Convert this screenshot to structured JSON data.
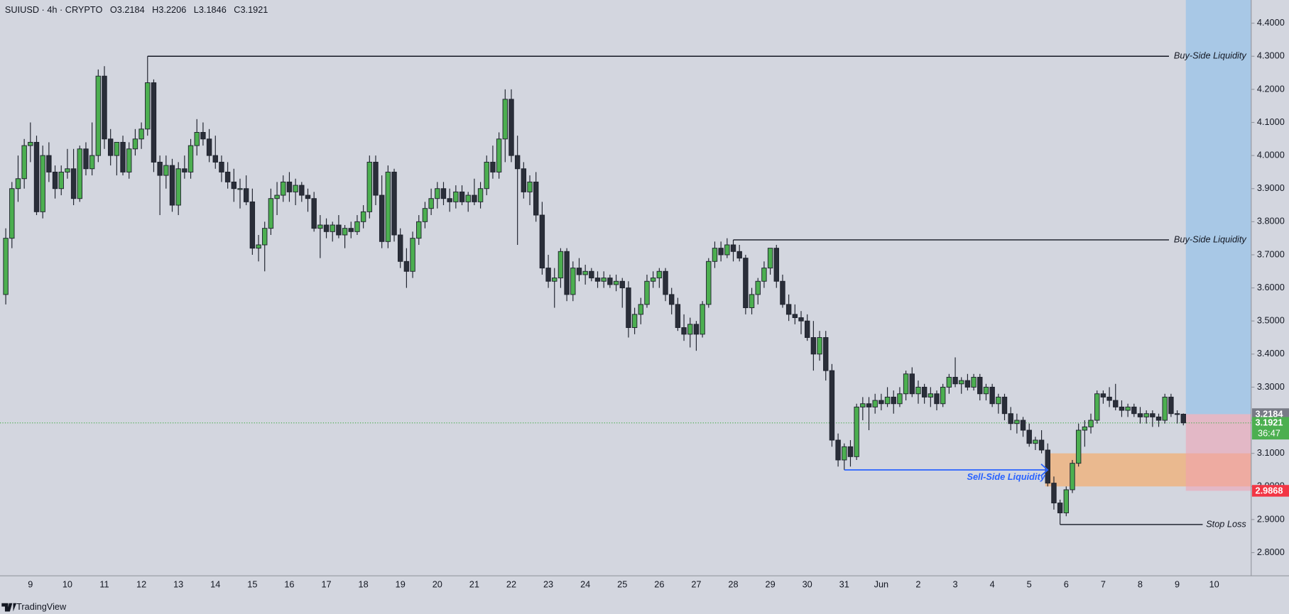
{
  "chart_data": {
    "type": "candlestick",
    "header": {
      "symbol": "SUIUSD · 4h · CRYPTO",
      "ohlc_labels": [
        "O3.2184",
        "H3.2206",
        "L3.1846",
        "C3.1921"
      ]
    },
    "footer": "TradingView",
    "ylim": [
      2.73,
      4.47
    ],
    "yticks": [
      {
        "value": 2.8,
        "label": "2.8000"
      },
      {
        "value": 2.9,
        "label": "2.9000"
      },
      {
        "value": 3.0,
        "label": "3.0000"
      },
      {
        "value": 3.1,
        "label": "3.1000"
      },
      {
        "value": 3.2,
        "label": "3.2000"
      },
      {
        "value": 3.3,
        "label": "3.3000"
      },
      {
        "value": 3.4,
        "label": "3.4000"
      },
      {
        "value": 3.5,
        "label": "3.5000"
      },
      {
        "value": 3.6,
        "label": "3.6000"
      },
      {
        "value": 3.7,
        "label": "3.7000"
      },
      {
        "value": 3.8,
        "label": "3.8000"
      },
      {
        "value": 3.9,
        "label": "3.9000"
      },
      {
        "value": 4.0,
        "label": "4.0000"
      },
      {
        "value": 4.1,
        "label": "4.1000"
      },
      {
        "value": 4.2,
        "label": "4.2000"
      },
      {
        "value": 4.3,
        "label": "4.3000"
      },
      {
        "value": 4.4,
        "label": "4.4000"
      }
    ],
    "up_color": "#4caf50",
    "down_color": "#2a2e39",
    "categories": [
      null,
      null,
      null,
      null,
      "9",
      null,
      null,
      null,
      null,
      null,
      "10",
      null,
      null,
      null,
      null,
      null,
      "11",
      null,
      null,
      null,
      null,
      null,
      "12",
      null,
      null,
      null,
      null,
      null,
      "13",
      null,
      null,
      null,
      null,
      null,
      "14",
      null,
      null,
      null,
      null,
      null,
      "15",
      null,
      null,
      null,
      null,
      null,
      "16",
      null,
      null,
      null,
      null,
      null,
      "17",
      null,
      null,
      null,
      null,
      null,
      "18",
      null,
      null,
      null,
      null,
      null,
      "19",
      null,
      null,
      null,
      null,
      null,
      "20",
      null,
      null,
      null,
      null,
      null,
      "21",
      null,
      null,
      null,
      null,
      null,
      "22",
      null,
      null,
      null,
      null,
      null,
      "23",
      null,
      null,
      null,
      null,
      null,
      "24",
      null,
      null,
      null,
      null,
      null,
      "25",
      null,
      null,
      null,
      null,
      null,
      "26",
      null,
      null,
      null,
      null,
      null,
      "27",
      null,
      null,
      null,
      null,
      null,
      "28",
      null,
      null,
      null,
      null,
      null,
      "29",
      null,
      null,
      null,
      null,
      null,
      "30",
      null,
      null,
      null,
      null,
      null,
      "31",
      null,
      null,
      null,
      null,
      null,
      "Jun",
      null,
      null,
      null,
      null,
      null,
      "2",
      null,
      null,
      null,
      null,
      null,
      "3",
      null,
      null,
      null,
      null,
      null,
      "4",
      null,
      null,
      null,
      null,
      null,
      "5",
      null,
      null,
      null,
      null,
      null,
      "6",
      null,
      null,
      null,
      null,
      null,
      "7",
      null,
      null,
      null,
      null,
      null,
      "8",
      null,
      null,
      null,
      null,
      null,
      "9",
      null,
      null,
      null,
      null,
      null,
      "10"
    ],
    "candles": [
      [
        3.58,
        3.78,
        3.55,
        3.75
      ],
      [
        3.75,
        3.92,
        3.72,
        3.9
      ],
      [
        3.9,
        4.0,
        3.86,
        3.93
      ],
      [
        3.93,
        4.05,
        3.9,
        4.03
      ],
      [
        4.03,
        4.1,
        3.98,
        4.04
      ],
      [
        4.04,
        4.06,
        3.82,
        3.83
      ],
      [
        3.83,
        4.03,
        3.81,
        4.0
      ],
      [
        4.0,
        4.04,
        3.92,
        3.95
      ],
      [
        3.95,
        3.97,
        3.87,
        3.9
      ],
      [
        3.9,
        3.97,
        3.88,
        3.95
      ],
      [
        3.95,
        4.02,
        3.93,
        3.96
      ],
      [
        3.96,
        4.02,
        3.85,
        3.87
      ],
      [
        3.87,
        4.03,
        3.86,
        4.02
      ],
      [
        4.02,
        4.04,
        3.94,
        3.96
      ],
      [
        3.96,
        4.1,
        3.94,
        4.0
      ],
      [
        4.0,
        4.26,
        3.98,
        4.24
      ],
      [
        4.24,
        4.27,
        4.02,
        4.05
      ],
      [
        4.05,
        4.08,
        3.97,
        4.0
      ],
      [
        4.0,
        4.04,
        3.94,
        4.04
      ],
      [
        4.04,
        4.06,
        3.94,
        3.95
      ],
      [
        3.95,
        4.04,
        3.93,
        4.02
      ],
      [
        4.02,
        4.08,
        4.0,
        4.05
      ],
      [
        4.05,
        4.1,
        4.02,
        4.08
      ],
      [
        4.08,
        4.3,
        4.06,
        4.22
      ],
      [
        4.22,
        4.23,
        3.95,
        3.98
      ],
      [
        3.98,
        4.0,
        3.82,
        3.94
      ],
      [
        3.94,
        4.0,
        3.9,
        3.97
      ],
      [
        3.97,
        3.99,
        3.83,
        3.85
      ],
      [
        3.85,
        3.98,
        3.82,
        3.96
      ],
      [
        3.96,
        4.0,
        3.93,
        3.95
      ],
      [
        3.95,
        4.05,
        3.93,
        4.03
      ],
      [
        4.03,
        4.11,
        4.0,
        4.07
      ],
      [
        4.07,
        4.1,
        4.03,
        4.05
      ],
      [
        4.05,
        4.08,
        3.98,
        4.0
      ],
      [
        4.0,
        4.06,
        3.96,
        3.98
      ],
      [
        3.98,
        4.0,
        3.92,
        3.95
      ],
      [
        3.95,
        3.98,
        3.9,
        3.92
      ],
      [
        3.92,
        3.96,
        3.86,
        3.9
      ],
      [
        3.9,
        3.93,
        3.84,
        3.9
      ],
      [
        3.9,
        3.94,
        3.85,
        3.86
      ],
      [
        3.86,
        3.9,
        3.7,
        3.72
      ],
      [
        3.72,
        3.76,
        3.68,
        3.73
      ],
      [
        3.73,
        3.8,
        3.65,
        3.78
      ],
      [
        3.78,
        3.9,
        3.76,
        3.87
      ],
      [
        3.87,
        3.92,
        3.82,
        3.88
      ],
      [
        3.88,
        3.94,
        3.86,
        3.92
      ],
      [
        3.92,
        3.95,
        3.86,
        3.89
      ],
      [
        3.89,
        3.93,
        3.85,
        3.91
      ],
      [
        3.91,
        3.92,
        3.86,
        3.88
      ],
      [
        3.88,
        3.9,
        3.83,
        3.87
      ],
      [
        3.87,
        3.89,
        3.77,
        3.78
      ],
      [
        3.78,
        3.82,
        3.69,
        3.79
      ],
      [
        3.79,
        3.81,
        3.75,
        3.77
      ],
      [
        3.77,
        3.8,
        3.74,
        3.79
      ],
      [
        3.79,
        3.82,
        3.75,
        3.76
      ],
      [
        3.76,
        3.79,
        3.72,
        3.78
      ],
      [
        3.78,
        3.8,
        3.75,
        3.77
      ],
      [
        3.77,
        3.82,
        3.76,
        3.8
      ],
      [
        3.8,
        3.85,
        3.78,
        3.83
      ],
      [
        3.83,
        4.0,
        3.81,
        3.98
      ],
      [
        3.98,
        4.0,
        3.85,
        3.88
      ],
      [
        3.88,
        3.94,
        3.72,
        3.74
      ],
      [
        3.74,
        3.97,
        3.72,
        3.95
      ],
      [
        3.95,
        3.96,
        3.74,
        3.76
      ],
      [
        3.76,
        3.78,
        3.66,
        3.68
      ],
      [
        3.68,
        3.72,
        3.6,
        3.65
      ],
      [
        3.65,
        3.77,
        3.63,
        3.75
      ],
      [
        3.75,
        3.82,
        3.73,
        3.8
      ],
      [
        3.8,
        3.86,
        3.78,
        3.84
      ],
      [
        3.84,
        3.9,
        3.82,
        3.87
      ],
      [
        3.87,
        3.92,
        3.84,
        3.9
      ],
      [
        3.9,
        3.92,
        3.85,
        3.87
      ],
      [
        3.87,
        3.9,
        3.83,
        3.86
      ],
      [
        3.86,
        3.91,
        3.84,
        3.89
      ],
      [
        3.89,
        3.91,
        3.85,
        3.86
      ],
      [
        3.86,
        3.89,
        3.83,
        3.88
      ],
      [
        3.88,
        3.93,
        3.85,
        3.86
      ],
      [
        3.86,
        3.92,
        3.84,
        3.9
      ],
      [
        3.9,
        4.0,
        3.88,
        3.98
      ],
      [
        3.98,
        4.03,
        3.93,
        3.95
      ],
      [
        3.95,
        4.07,
        3.93,
        4.05
      ],
      [
        4.05,
        4.2,
        3.98,
        4.17
      ],
      [
        4.17,
        4.2,
        3.98,
        4.0
      ],
      [
        4.0,
        4.06,
        3.73,
        3.96
      ],
      [
        3.96,
        3.98,
        3.87,
        3.89
      ],
      [
        3.89,
        3.94,
        3.85,
        3.92
      ],
      [
        3.92,
        3.95,
        3.8,
        3.82
      ],
      [
        3.82,
        3.86,
        3.64,
        3.66
      ],
      [
        3.66,
        3.7,
        3.6,
        3.62
      ],
      [
        3.62,
        3.66,
        3.54,
        3.63
      ],
      [
        3.63,
        3.72,
        3.6,
        3.71
      ],
      [
        3.71,
        3.72,
        3.56,
        3.58
      ],
      [
        3.58,
        3.68,
        3.56,
        3.66
      ],
      [
        3.66,
        3.69,
        3.62,
        3.64
      ],
      [
        3.64,
        3.67,
        3.61,
        3.65
      ],
      [
        3.65,
        3.66,
        3.62,
        3.63
      ],
      [
        3.63,
        3.65,
        3.6,
        3.62
      ],
      [
        3.62,
        3.65,
        3.6,
        3.63
      ],
      [
        3.63,
        3.64,
        3.6,
        3.61
      ],
      [
        3.61,
        3.64,
        3.59,
        3.62
      ],
      [
        3.62,
        3.63,
        3.54,
        3.6
      ],
      [
        3.6,
        3.62,
        3.45,
        3.48
      ],
      [
        3.48,
        3.54,
        3.46,
        3.52
      ],
      [
        3.52,
        3.57,
        3.49,
        3.55
      ],
      [
        3.55,
        3.64,
        3.54,
        3.62
      ],
      [
        3.62,
        3.65,
        3.6,
        3.63
      ],
      [
        3.63,
        3.66,
        3.6,
        3.65
      ],
      [
        3.65,
        3.66,
        3.56,
        3.58
      ],
      [
        3.58,
        3.6,
        3.52,
        3.55
      ],
      [
        3.55,
        3.57,
        3.47,
        3.48
      ],
      [
        3.48,
        3.52,
        3.44,
        3.46
      ],
      [
        3.46,
        3.51,
        3.42,
        3.49
      ],
      [
        3.49,
        3.5,
        3.41,
        3.46
      ],
      [
        3.46,
        3.56,
        3.45,
        3.55
      ],
      [
        3.55,
        3.69,
        3.54,
        3.68
      ],
      [
        3.68,
        3.74,
        3.66,
        3.72
      ],
      [
        3.72,
        3.74,
        3.68,
        3.7
      ],
      [
        3.7,
        3.75,
        3.69,
        3.73
      ],
      [
        3.73,
        3.745,
        3.68,
        3.71
      ],
      [
        3.71,
        3.73,
        3.68,
        3.69
      ],
      [
        3.69,
        3.7,
        3.52,
        3.54
      ],
      [
        3.54,
        3.6,
        3.52,
        3.58
      ],
      [
        3.58,
        3.63,
        3.55,
        3.62
      ],
      [
        3.62,
        3.68,
        3.6,
        3.66
      ],
      [
        3.66,
        3.72,
        3.64,
        3.72
      ],
      [
        3.72,
        3.73,
        3.6,
        3.62
      ],
      [
        3.62,
        3.64,
        3.54,
        3.55
      ],
      [
        3.55,
        3.58,
        3.5,
        3.52
      ],
      [
        3.52,
        3.55,
        3.49,
        3.51
      ],
      [
        3.51,
        3.53,
        3.46,
        3.5
      ],
      [
        3.5,
        3.52,
        3.44,
        3.45
      ],
      [
        3.45,
        3.5,
        3.35,
        3.4
      ],
      [
        3.4,
        3.47,
        3.38,
        3.45
      ],
      [
        3.45,
        3.47,
        3.32,
        3.35
      ],
      [
        3.35,
        3.37,
        3.12,
        3.14
      ],
      [
        3.14,
        3.16,
        3.06,
        3.08
      ],
      [
        3.08,
        3.13,
        3.05,
        3.12
      ],
      [
        3.12,
        3.14,
        3.06,
        3.09
      ],
      [
        3.09,
        3.25,
        3.08,
        3.24
      ],
      [
        3.24,
        3.27,
        3.2,
        3.25
      ],
      [
        3.25,
        3.27,
        3.17,
        3.24
      ],
      [
        3.24,
        3.28,
        3.22,
        3.26
      ],
      [
        3.26,
        3.28,
        3.23,
        3.25
      ],
      [
        3.25,
        3.3,
        3.24,
        3.27
      ],
      [
        3.27,
        3.29,
        3.22,
        3.25
      ],
      [
        3.25,
        3.3,
        3.24,
        3.28
      ],
      [
        3.28,
        3.35,
        3.26,
        3.34
      ],
      [
        3.34,
        3.36,
        3.27,
        3.28
      ],
      [
        3.28,
        3.32,
        3.25,
        3.3
      ],
      [
        3.3,
        3.31,
        3.25,
        3.27
      ],
      [
        3.27,
        3.3,
        3.24,
        3.28
      ],
      [
        3.28,
        3.29,
        3.23,
        3.25
      ],
      [
        3.25,
        3.31,
        3.24,
        3.3
      ],
      [
        3.3,
        3.34,
        3.28,
        3.33
      ],
      [
        3.33,
        3.39,
        3.3,
        3.31
      ],
      [
        3.31,
        3.33,
        3.28,
        3.32
      ],
      [
        3.32,
        3.34,
        3.29,
        3.3
      ],
      [
        3.3,
        3.34,
        3.29,
        3.33
      ],
      [
        3.33,
        3.34,
        3.26,
        3.28
      ],
      [
        3.28,
        3.31,
        3.26,
        3.3
      ],
      [
        3.3,
        3.31,
        3.24,
        3.25
      ],
      [
        3.25,
        3.28,
        3.22,
        3.27
      ],
      [
        3.27,
        3.28,
        3.2,
        3.22
      ],
      [
        3.22,
        3.24,
        3.17,
        3.19
      ],
      [
        3.19,
        3.22,
        3.16,
        3.2
      ],
      [
        3.2,
        3.21,
        3.15,
        3.17
      ],
      [
        3.17,
        3.19,
        3.12,
        3.13
      ],
      [
        3.13,
        3.15,
        3.11,
        3.14
      ],
      [
        3.14,
        3.17,
        3.1,
        3.11
      ],
      [
        3.11,
        3.13,
        3.0,
        3.01
      ],
      [
        3.01,
        3.03,
        2.93,
        2.95
      ],
      [
        2.95,
        2.96,
        2.885,
        2.92
      ],
      [
        2.92,
        3.0,
        2.91,
        2.99
      ],
      [
        2.99,
        3.08,
        2.98,
        3.07
      ],
      [
        3.07,
        3.19,
        3.06,
        3.17
      ],
      [
        3.17,
        3.2,
        3.12,
        3.18
      ],
      [
        3.18,
        3.22,
        3.16,
        3.2
      ],
      [
        3.2,
        3.29,
        3.19,
        3.28
      ],
      [
        3.28,
        3.29,
        3.25,
        3.27
      ],
      [
        3.27,
        3.3,
        3.24,
        3.26
      ],
      [
        3.26,
        3.31,
        3.23,
        3.24
      ],
      [
        3.24,
        3.26,
        3.21,
        3.23
      ],
      [
        3.23,
        3.25,
        3.21,
        3.24
      ],
      [
        3.24,
        3.25,
        3.21,
        3.22
      ],
      [
        3.22,
        3.24,
        3.19,
        3.21
      ],
      [
        3.21,
        3.23,
        3.19,
        3.22
      ],
      [
        3.22,
        3.23,
        3.18,
        3.21
      ],
      [
        3.21,
        3.22,
        3.18,
        3.2
      ],
      [
        3.2,
        3.28,
        3.19,
        3.27
      ],
      [
        3.27,
        3.28,
        3.21,
        3.22
      ],
      [
        3.22,
        3.23,
        3.19,
        3.2184
      ],
      [
        3.2184,
        3.2206,
        3.1846,
        3.1921
      ],
      null,
      null,
      null,
      null,
      null
    ],
    "levels": [
      {
        "text": "Buy-Side Liquidity",
        "value": 4.3,
        "start": 23
      },
      {
        "text": "Buy-Side Liquidity",
        "value": 3.745,
        "start": 118
      },
      {
        "text": "Stop Loss",
        "value": 2.885,
        "start": 171
      }
    ],
    "sell_side": {
      "text": "Sell-Side Liquidity",
      "value": 3.05,
      "start": 136,
      "end": 169,
      "color": "#2962ff"
    },
    "zone": {
      "high": 3.1,
      "low": 3.0,
      "start": 169,
      "color": "#f0b27a"
    },
    "position": {
      "target": 4.47,
      "entry": 3.2184,
      "stop": 2.9868,
      "start": 191
    },
    "last_price": {
      "value": 3.1921,
      "countdown": "36:47",
      "color": "#4caf50"
    },
    "price_tags": [
      {
        "value": 3.2184,
        "color": "#787b86"
      },
      {
        "value": 2.9868,
        "color": "#f23645"
      }
    ]
  }
}
